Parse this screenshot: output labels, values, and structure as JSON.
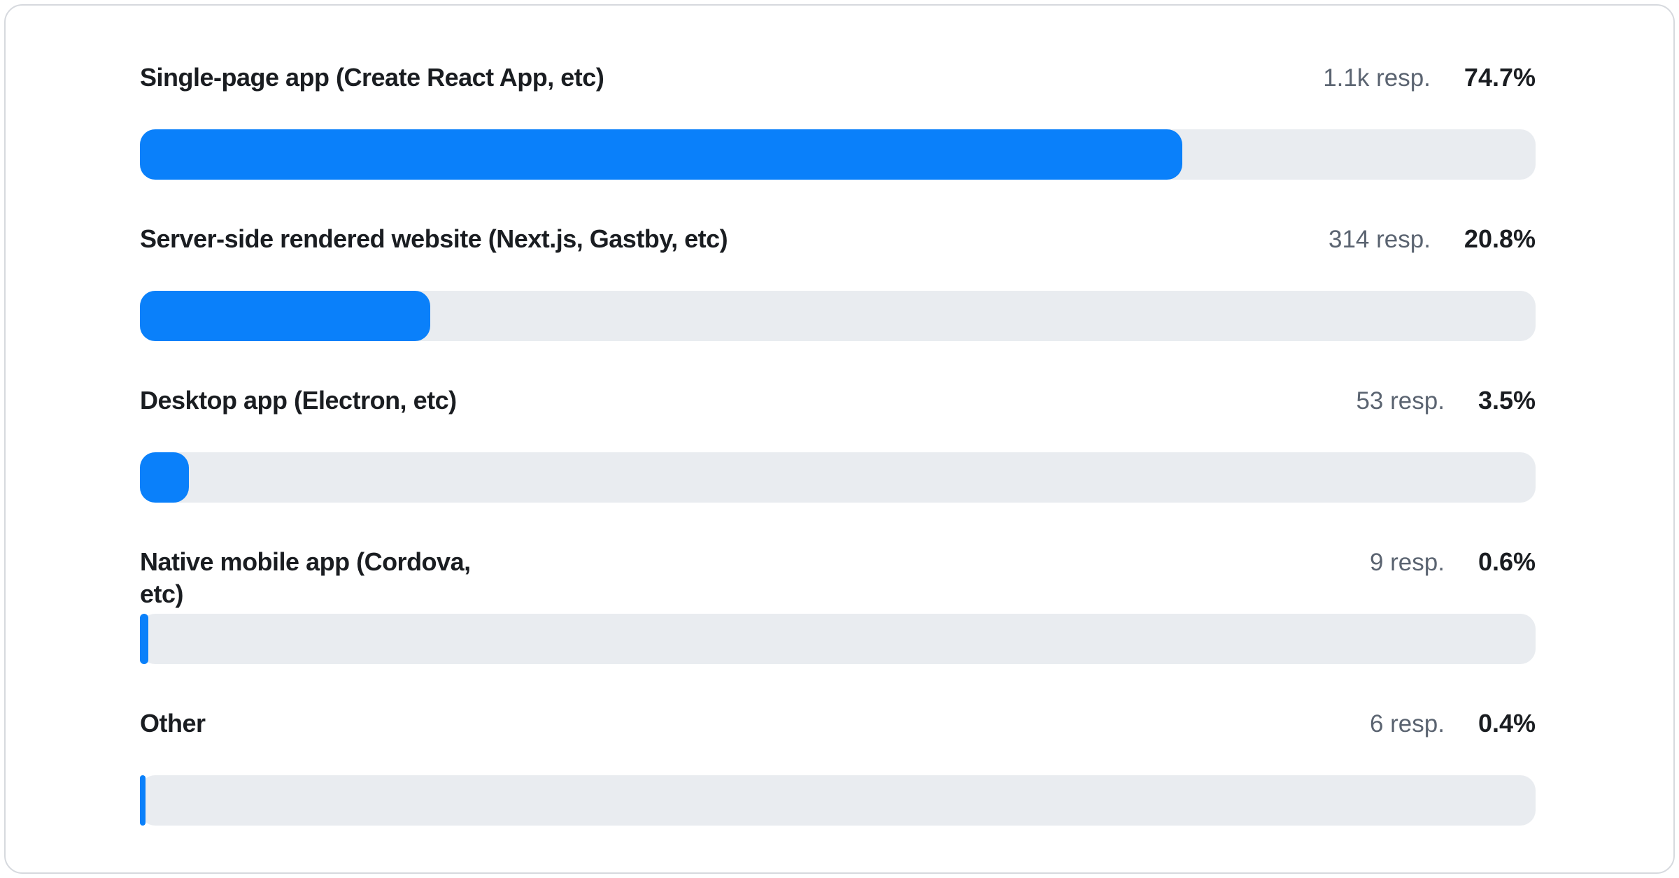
{
  "colors": {
    "bar_fill": "#0a80fa",
    "bar_track": "#e9ecf0",
    "label": "#1a1d21",
    "muted": "#5b6471",
    "card_border": "#d6d9de",
    "card_bg": "#ffffff"
  },
  "chart_data": {
    "type": "bar",
    "orientation": "horizontal",
    "value_unit": "percent",
    "xlim": [
      0,
      100
    ],
    "grid": false,
    "legend": false,
    "categories": [
      "Single-page app (Create React App, etc)",
      "Server-side rendered website (Next.js, Gastby, etc)",
      "Desktop app (Electron, etc)",
      "Native mobile app (Cordova, etc)",
      "Other"
    ],
    "values": [
      74.7,
      20.8,
      3.5,
      0.6,
      0.4
    ],
    "rows": [
      {
        "label": "Single-page app (Create React App, etc)",
        "responses": "1.1k resp.",
        "percent": "74.7%",
        "value": 74.7
      },
      {
        "label": "Server-side rendered website (Next.js, Gastby, etc)",
        "responses": "314 resp.",
        "percent": "20.8%",
        "value": 20.8
      },
      {
        "label": "Desktop app (Electron, etc)",
        "responses": "53 resp.",
        "percent": "3.5%",
        "value": 3.5
      },
      {
        "label": "Native mobile app (Cordova, etc)",
        "responses": "9 resp.",
        "percent": "0.6%",
        "value": 0.6
      },
      {
        "label": "Other",
        "responses": "6 resp.",
        "percent": "0.4%",
        "value": 0.4
      }
    ]
  }
}
